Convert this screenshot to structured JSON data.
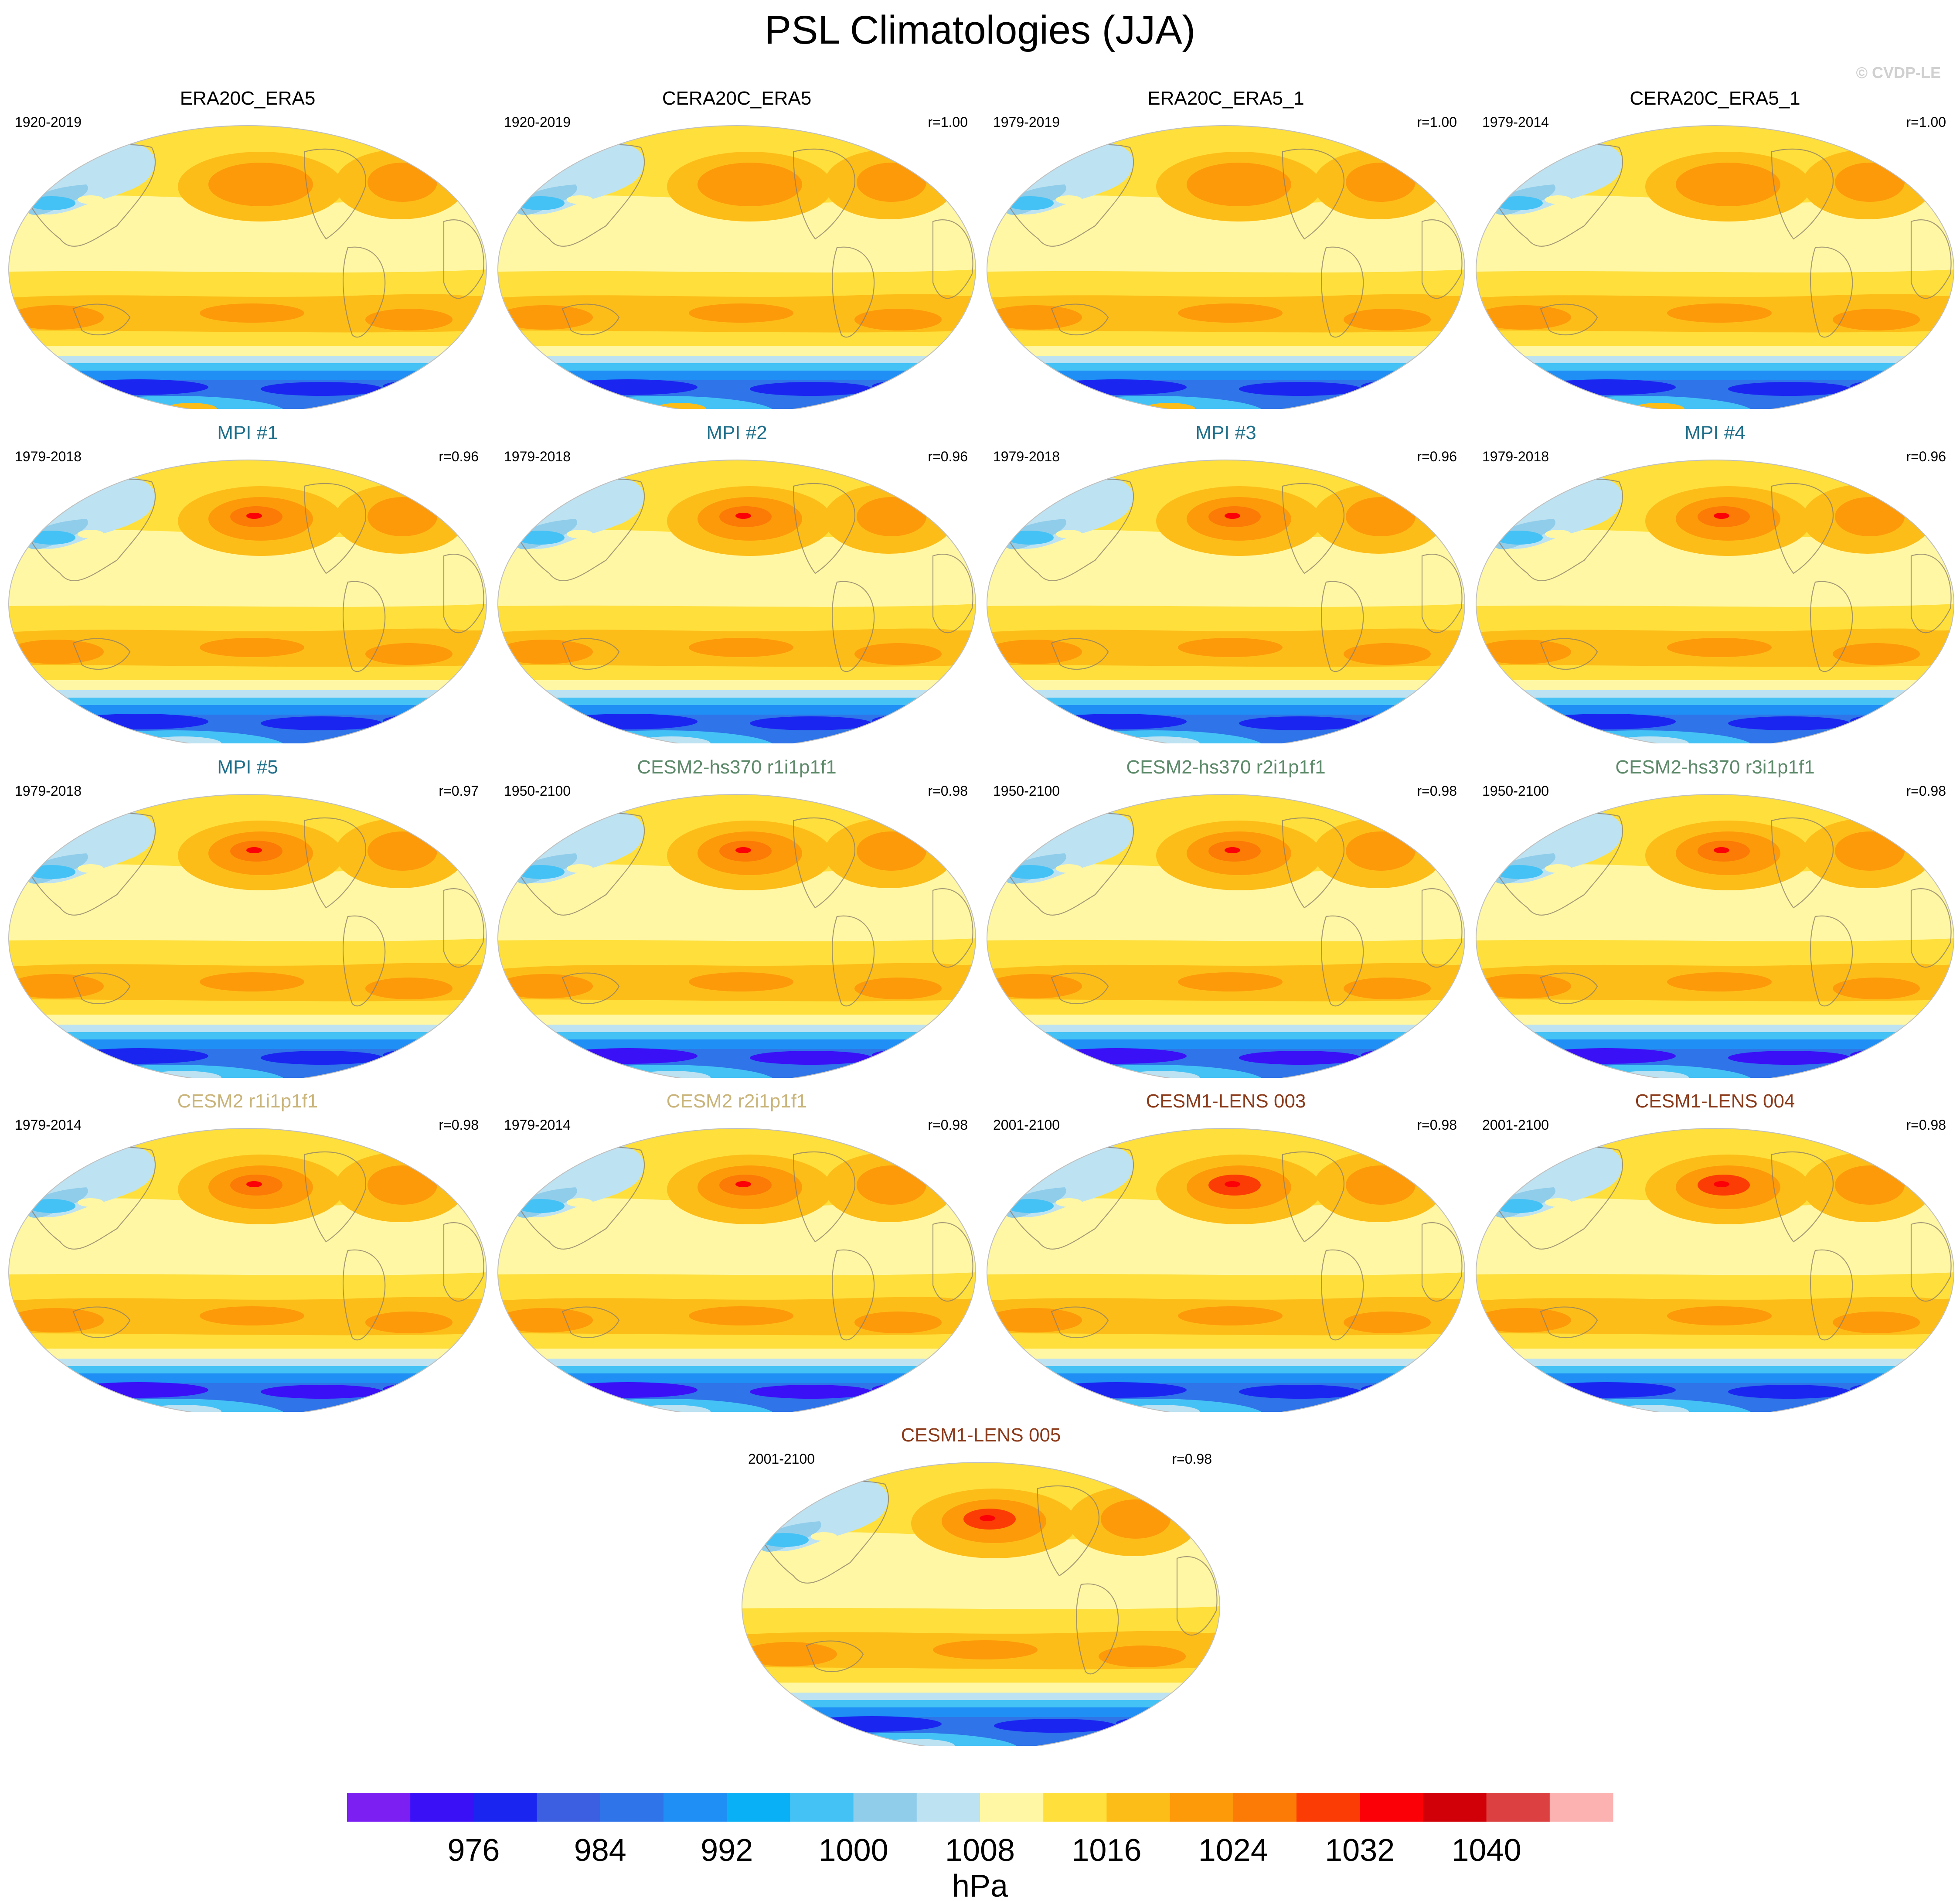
{
  "title": "PSL Climatologies (JJA)",
  "copyright": "© CVDP-LE",
  "colors": {
    "land_outline": "#8a7d6a",
    "map_border": "#c0c0c0"
  },
  "panels": [
    {
      "title": "ERA20C_ERA5",
      "title_color": "#000000",
      "years": "1920-2019",
      "corr": "",
      "variant": 0
    },
    {
      "title": "CERA20C_ERA5",
      "title_color": "#000000",
      "years": "1920-2019",
      "corr": "r=1.00",
      "variant": 0
    },
    {
      "title": "ERA20C_ERA5_1",
      "title_color": "#000000",
      "years": "1979-2019",
      "corr": "r=1.00",
      "variant": 0
    },
    {
      "title": "CERA20C_ERA5_1",
      "title_color": "#000000",
      "years": "1979-2014",
      "corr": "r=1.00",
      "variant": 0
    },
    {
      "title": "MPI #1",
      "title_color": "#1f6f8b",
      "years": "1979-2018",
      "corr": "r=0.96",
      "variant": 1
    },
    {
      "title": "MPI #2",
      "title_color": "#1f6f8b",
      "years": "1979-2018",
      "corr": "r=0.96",
      "variant": 1
    },
    {
      "title": "MPI #3",
      "title_color": "#1f6f8b",
      "years": "1979-2018",
      "corr": "r=0.96",
      "variant": 1
    },
    {
      "title": "MPI #4",
      "title_color": "#1f6f8b",
      "years": "1979-2018",
      "corr": "r=0.96",
      "variant": 1
    },
    {
      "title": "MPI #5",
      "title_color": "#1f6f8b",
      "years": "1979-2018",
      "corr": "r=0.97",
      "variant": 1
    },
    {
      "title": "CESM2-hs370 r1i1p1f1",
      "title_color": "#5d8a6a",
      "years": "1950-2100",
      "corr": "r=0.98",
      "variant": 2
    },
    {
      "title": "CESM2-hs370 r2i1p1f1",
      "title_color": "#5d8a6a",
      "years": "1950-2100",
      "corr": "r=0.98",
      "variant": 2
    },
    {
      "title": "CESM2-hs370 r3i1p1f1",
      "title_color": "#5d8a6a",
      "years": "1950-2100",
      "corr": "r=0.98",
      "variant": 2
    },
    {
      "title": "CESM2 r1i1p1f1",
      "title_color": "#c9b47a",
      "years": "1979-2014",
      "corr": "r=0.98",
      "variant": 3
    },
    {
      "title": "CESM2 r2i1p1f1",
      "title_color": "#c9b47a",
      "years": "1979-2014",
      "corr": "r=0.98",
      "variant": 3
    },
    {
      "title": "CESM1-LENS 003",
      "title_color": "#8b3a1a",
      "years": "2001-2100",
      "corr": "r=0.98",
      "variant": 4
    },
    {
      "title": "CESM1-LENS 004",
      "title_color": "#8b3a1a",
      "years": "2001-2100",
      "corr": "r=0.98",
      "variant": 4
    },
    {
      "title": "CESM1-LENS 005",
      "title_color": "#8b3a1a",
      "years": "2001-2100",
      "corr": "r=0.98",
      "variant": 4
    }
  ],
  "chart_data": {
    "type": "heatmap",
    "title": "PSL Climatologies (JJA)",
    "colorbar": {
      "unit": "hPa",
      "levels": [
        972,
        976,
        980,
        984,
        988,
        992,
        996,
        1000,
        1004,
        1008,
        1012,
        1016,
        1020,
        1024,
        1028,
        1032,
        1036,
        1040,
        1044
      ],
      "tick_labels": [
        "976",
        "984",
        "992",
        "1000",
        "1008",
        "1016",
        "1024",
        "1032",
        "1040"
      ],
      "colors": [
        "#7b1ff2",
        "#3a10f7",
        "#1a26f0",
        "#3b5fe0",
        "#2f74e8",
        "#1f8ff5",
        "#0ab0f5",
        "#45c2f5",
        "#90cdea",
        "#bde2f2",
        "#fff7a3",
        "#fedf3c",
        "#fdbd18",
        "#fd9a0a",
        "#fc7a06",
        "#fc3c05",
        "#fb0006",
        "#d10008",
        "#dc4040",
        "#fdb2b2"
      ]
    }
  }
}
